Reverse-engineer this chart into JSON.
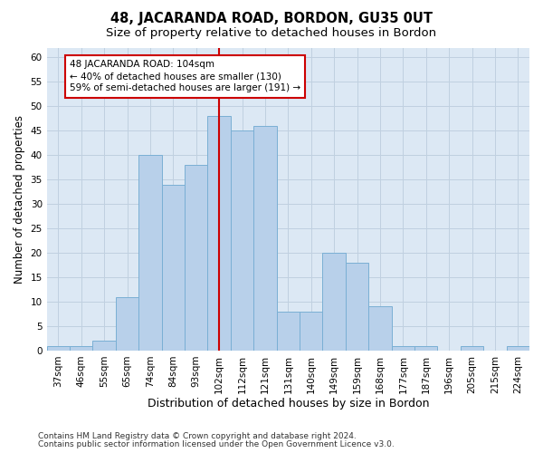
{
  "title": "48, JACARANDA ROAD, BORDON, GU35 0UT",
  "subtitle": "Size of property relative to detached houses in Bordon",
  "xlabel": "Distribution of detached houses by size in Bordon",
  "ylabel": "Number of detached properties",
  "categories": [
    "37sqm",
    "46sqm",
    "55sqm",
    "65sqm",
    "74sqm",
    "84sqm",
    "93sqm",
    "102sqm",
    "112sqm",
    "121sqm",
    "131sqm",
    "140sqm",
    "149sqm",
    "159sqm",
    "168sqm",
    "177sqm",
    "187sqm",
    "196sqm",
    "205sqm",
    "215sqm",
    "224sqm"
  ],
  "values": [
    1,
    1,
    2,
    11,
    40,
    34,
    38,
    48,
    45,
    46,
    8,
    8,
    20,
    18,
    9,
    1,
    1,
    0,
    1,
    0,
    1
  ],
  "bar_color": "#b8d0ea",
  "bar_edge_color": "#7aafd4",
  "highlight_index": 7,
  "highlight_line_color": "#cc0000",
  "annotation_line1": "48 JACARANDA ROAD: 104sqm",
  "annotation_line2": "← 40% of detached houses are smaller (130)",
  "annotation_line3": "59% of semi-detached houses are larger (191) →",
  "annotation_box_color": "#ffffff",
  "annotation_box_edge_color": "#cc0000",
  "ylim": [
    0,
    62
  ],
  "yticks": [
    0,
    5,
    10,
    15,
    20,
    25,
    30,
    35,
    40,
    45,
    50,
    55,
    60
  ],
  "grid_color": "#c0d0e0",
  "bg_color": "#dce8f4",
  "footer_line1": "Contains HM Land Registry data © Crown copyright and database right 2024.",
  "footer_line2": "Contains public sector information licensed under the Open Government Licence v3.0.",
  "title_fontsize": 10.5,
  "subtitle_fontsize": 9.5,
  "ylabel_fontsize": 8.5,
  "xlabel_fontsize": 9,
  "tick_fontsize": 7.5,
  "annotation_fontsize": 7.5,
  "footer_fontsize": 6.5
}
